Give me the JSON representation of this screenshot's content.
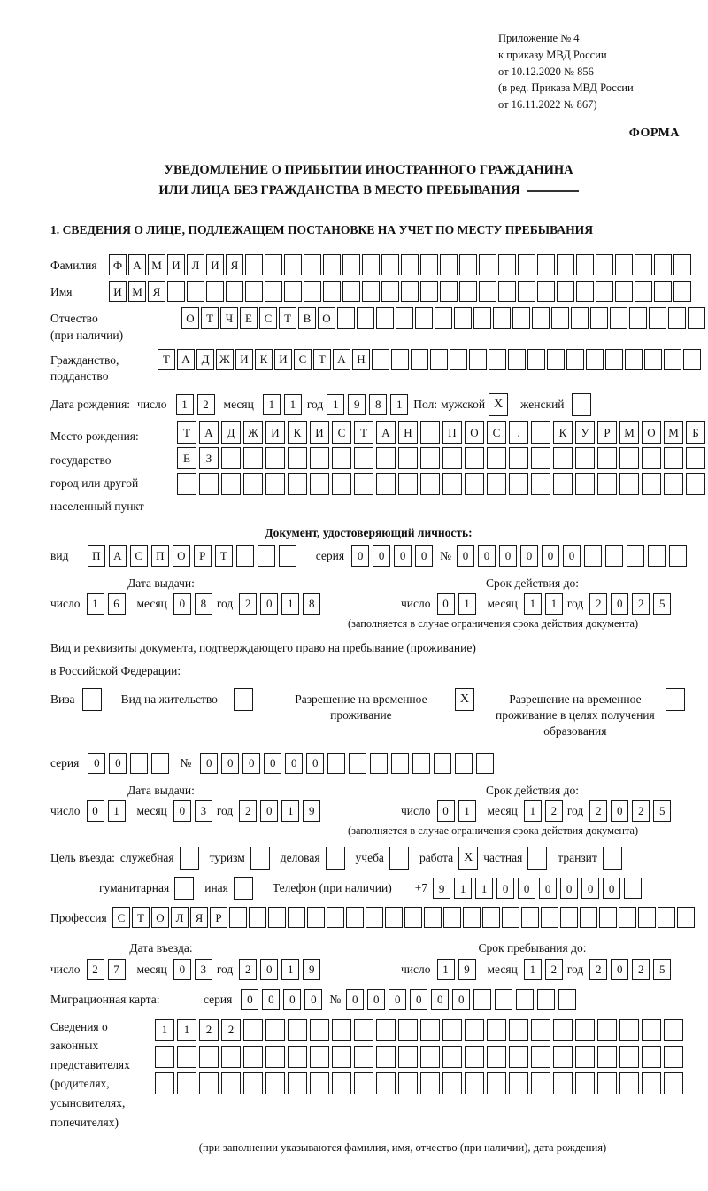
{
  "page": {
    "appendix": [
      "Приложение № 4",
      "к приказу МВД России",
      "от 10.12.2020 № 856",
      "(в ред. Приказа МВД России",
      "от 16.11.2022 № 867)"
    ],
    "forma": "ФОРМА",
    "title1": "УВЕДОМЛЕНИЕ О ПРИБЫТИИ ИНОСТРАННОГО ГРАЖДАНИНА",
    "title2": "ИЛИ ЛИЦА БЕЗ ГРАЖДАНСТВА В МЕСТО ПРЕБЫВАНИЯ",
    "section1": "1. СВЕДЕНИЯ О ЛИЦЕ, ПОДЛЕЖАЩЕМ ПОСТАНОВКЕ НА УЧЕТ ПО МЕСТУ ПРЕБЫВАНИЯ"
  },
  "dl": {
    "d": "число",
    "m": "месяц",
    "y": "год"
  },
  "person": {
    "surname": {
      "label": "Фамилия",
      "count": 30,
      "chars": "ФАМИЛИЯ"
    },
    "firstname": {
      "label": "Имя",
      "count": 30,
      "chars": "ИМЯ"
    },
    "patronymic": {
      "label1": "Отчество",
      "label2": "(при наличии)",
      "count": 27,
      "chars": "ОТЧЕСТВО"
    },
    "citizenship": {
      "label1": "Гражданство,",
      "label2": "подданство",
      "count": 28,
      "chars": "ТАДЖИКИСТАН"
    },
    "birth": {
      "label": "Дата рождения:",
      "day": "12",
      "month": "11",
      "year": "1981",
      "sex_label": "Пол:",
      "male_label": "мужской",
      "male": "X",
      "female_label": "женский",
      "female": ""
    },
    "birthplace": {
      "label1": "Место рождения:",
      "label2": "государство",
      "label3": "город или другой",
      "label4": "населенный пункт",
      "row1": {
        "count": 24,
        "chars": "ТАДЖИКИСТАН ПОС. КУРМОМБ"
      },
      "row2": {
        "count": 24,
        "chars": "ЕЗ"
      },
      "row3": {
        "count": 24,
        "chars": ""
      }
    }
  },
  "iddoc": {
    "heading": "Документ, удостоверяющий личность:",
    "kind_label": "вид",
    "kind": {
      "count": 10,
      "chars": "ПАСПОРТ"
    },
    "series_label": "серия",
    "series": {
      "count": 4,
      "chars": "0000"
    },
    "number_label": "№",
    "number": {
      "count": 11,
      "chars": "000000"
    },
    "issue": {
      "heading": "Дата выдачи:",
      "day": "16",
      "month": "08",
      "year": "2018"
    },
    "expiry": {
      "heading": "Срок действия до:",
      "day": "01",
      "month": "11",
      "year": "2025"
    },
    "note": "(заполняется в случае ограничения срока действия документа)"
  },
  "staydoc": {
    "line1": "Вид и реквизиты документа, подтверждающего право на пребывание (проживание)",
    "line2": "в Российской Федерации:",
    "options": [
      {
        "label": "Виза",
        "value": ""
      },
      {
        "label": "Вид на жительство",
        "value": ""
      },
      {
        "label": "Разрешение на временное проживание",
        "value": "X"
      },
      {
        "label": "Разрешение на временное проживание в целях получения образования",
        "value": ""
      }
    ],
    "series_label": "серия",
    "series": {
      "count": 4,
      "chars": "00"
    },
    "number_label": "№",
    "number": {
      "count": 14,
      "chars": "000000"
    },
    "issue": {
      "heading": "Дата выдачи:",
      "day": "01",
      "month": "03",
      "year": "2019"
    },
    "expiry": {
      "heading": "Срок действия до:",
      "day": "01",
      "month": "12",
      "year": "2025"
    },
    "note": "(заполняется в случае ограничения срока действия документа)"
  },
  "purpose": {
    "label": "Цель въезда:",
    "row1": [
      {
        "label": "служебная",
        "value": ""
      },
      {
        "label": "туризм",
        "value": ""
      },
      {
        "label": "деловая",
        "value": ""
      },
      {
        "label": "учеба",
        "value": ""
      },
      {
        "label": "работа",
        "value": "X"
      },
      {
        "label": "частная",
        "value": ""
      },
      {
        "label": "транзит",
        "value": ""
      }
    ],
    "row2": [
      {
        "label": "гуманитарная",
        "value": ""
      },
      {
        "label": "иная",
        "value": ""
      }
    ],
    "phone_label": "Телефон (при наличии)",
    "phone_prefix": "+7",
    "phone": {
      "count": 10,
      "chars": "911000000"
    }
  },
  "profession": {
    "label": "Профессия",
    "count": 30,
    "chars": "СТОЛЯР"
  },
  "entry": {
    "issue": {
      "heading": "Дата въезда:",
      "day": "27",
      "month": "03",
      "year": "2019"
    },
    "expiry": {
      "heading": "Срок пребывания до:",
      "day": "19",
      "month": "12",
      "year": "2025"
    }
  },
  "migration": {
    "label": "Миграционная карта:",
    "series_label": "серия",
    "series": {
      "count": 4,
      "chars": "0000"
    },
    "number_label": "№",
    "number": {
      "count": 11,
      "chars": "000000"
    }
  },
  "representatives": {
    "l1": "Сведения о",
    "l2": "законных",
    "l3": "представителях",
    "l4": "(родителях,",
    "l5": "усыновителях,",
    "l6": "попечителях)",
    "row1": {
      "count": 24,
      "chars": "1122"
    },
    "row2": {
      "count": 24,
      "chars": ""
    },
    "row3": {
      "count": 24,
      "chars": ""
    },
    "note": "(при заполнении указываются фамилия, имя, отчество (при наличии), дата рождения)"
  }
}
